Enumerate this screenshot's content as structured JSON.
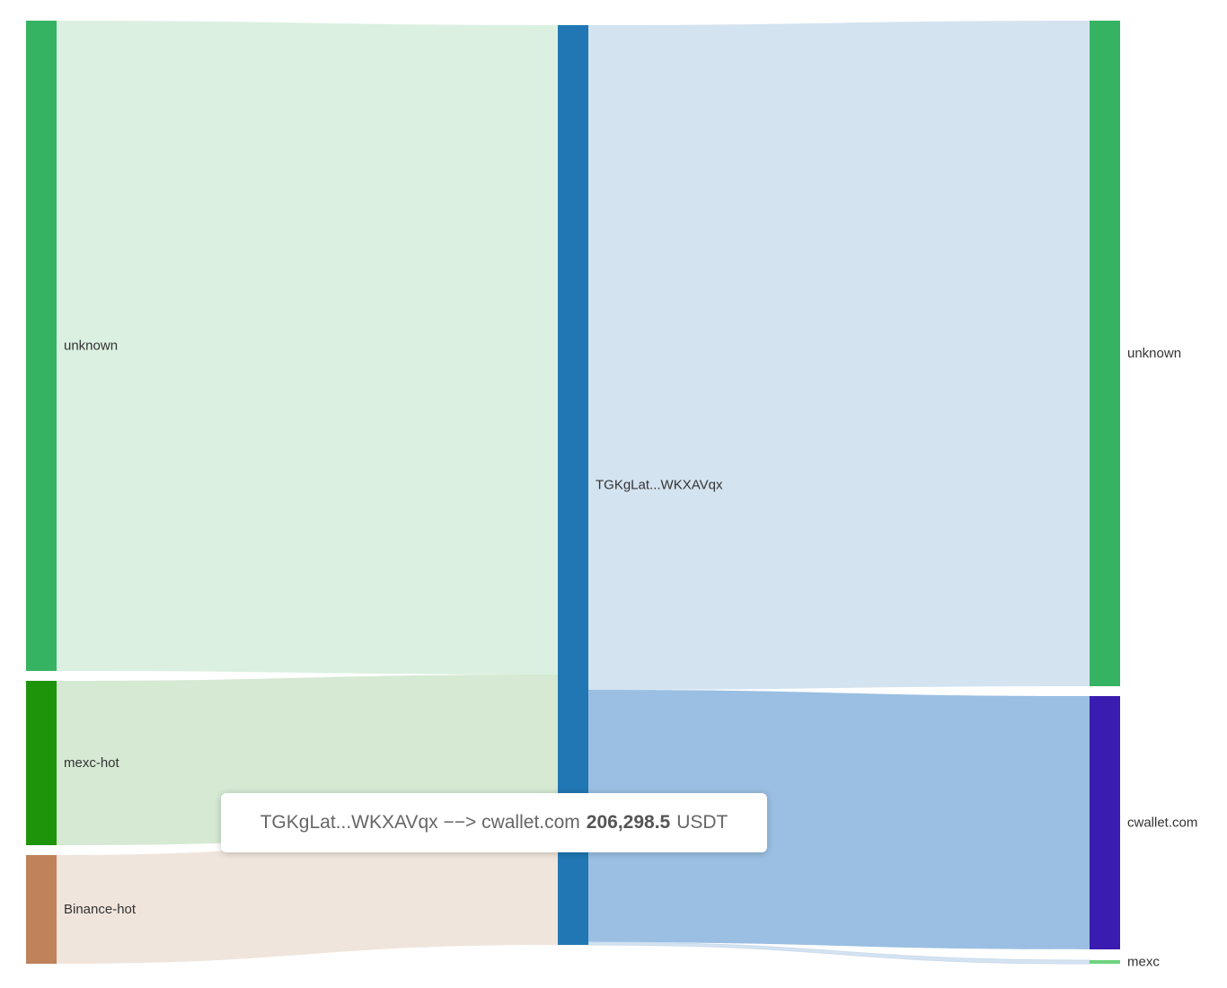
{
  "chart_data": {
    "type": "sankey",
    "nodes": [
      {
        "id": "src_unknown",
        "label": "unknown",
        "color": "#36b362"
      },
      {
        "id": "src_mexc_hot",
        "label": "mexc-hot",
        "color": "#1e940a"
      },
      {
        "id": "src_binance_hot",
        "label": "Binance-hot",
        "color": "#bf825a"
      },
      {
        "id": "center",
        "label": "TGKgLat...WKXAVqx",
        "color": "#2077b4"
      },
      {
        "id": "dst_unknown",
        "label": "unknown",
        "color": "#36b362"
      },
      {
        "id": "dst_cwallet",
        "label": "cwallet.com",
        "color": "#3a1cb0"
      },
      {
        "id": "dst_mexc",
        "label": "mexc",
        "color": "#6ed37e"
      }
    ],
    "links": [
      {
        "source": "src_unknown",
        "target": "center",
        "color": "#dbf0e1"
      },
      {
        "source": "src_mexc_hot",
        "target": "center",
        "color": "#d5e9d3"
      },
      {
        "source": "src_binance_hot",
        "target": "center",
        "color": "#f0e5dc"
      },
      {
        "source": "center",
        "target": "dst_unknown",
        "color": "#d4e3f0"
      },
      {
        "source": "center",
        "target": "dst_cwallet",
        "color": "#9abfe2",
        "value": 206298.5
      },
      {
        "source": "center",
        "target": "dst_mexc",
        "color": "#d4e3f0"
      }
    ]
  },
  "tooltip": {
    "text": "TGKgLat...WKXAVqx −−> cwallet.com",
    "amount": "206,298.5",
    "unit": "USDT"
  }
}
